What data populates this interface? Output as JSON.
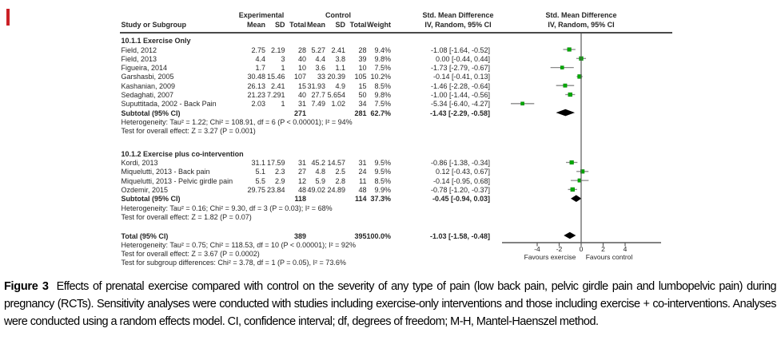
{
  "accent": {
    "red_mark_color": "#cb2026"
  },
  "table": {
    "headers": {
      "experimental": "Experimental",
      "control": "Control",
      "smd": "Std. Mean Difference",
      "method": "IV, Random, 95% CI",
      "study": "Study or Subgroup",
      "mean": "Mean",
      "sd": "SD",
      "total": "Total",
      "weight": "Weight"
    },
    "groups": [
      {
        "label": "10.1.1 Exercise Only",
        "studies": [
          {
            "name": "Field, 2012",
            "mean1": "2.75",
            "sd1": "2.19",
            "total1": "28",
            "mean2": "5.27",
            "sd2": "2.41",
            "total2": "28",
            "weight": "9.4%",
            "ci_text": "-1.08 [-1.64, -0.52]",
            "est": -1.08,
            "lo": -1.64,
            "hi": -0.52
          },
          {
            "name": "Field, 2013",
            "mean1": "4.4",
            "sd1": "3",
            "total1": "40",
            "mean2": "4.4",
            "sd2": "3.8",
            "total2": "39",
            "weight": "9.8%",
            "ci_text": "0.00 [-0.44, 0.44]",
            "est": 0.0,
            "lo": -0.44,
            "hi": 0.44
          },
          {
            "name": "Figueira, 2014",
            "mean1": "1.7",
            "sd1": "1",
            "total1": "10",
            "mean2": "3.6",
            "sd2": "1.1",
            "total2": "10",
            "weight": "7.5%",
            "ci_text": "-1.73 [-2.79, -0.67]",
            "est": -1.73,
            "lo": -2.79,
            "hi": -0.67
          },
          {
            "name": "Garshasbi, 2005",
            "mean1": "30.48",
            "sd1": "15.46",
            "total1": "107",
            "mean2": "33",
            "sd2": "20.39",
            "total2": "105",
            "weight": "10.2%",
            "ci_text": "-0.14 [-0.41, 0.13]",
            "est": -0.14,
            "lo": -0.41,
            "hi": 0.13
          },
          {
            "name": "Kashanian, 2009",
            "mean1": "26.13",
            "sd1": "2.41",
            "total1": "15",
            "mean2": "31.93",
            "sd2": "4.9",
            "total2": "15",
            "weight": "8.5%",
            "ci_text": "-1.46 [-2.28, -0.64]",
            "est": -1.46,
            "lo": -2.28,
            "hi": -0.64
          },
          {
            "name": "Sedaghati, 2007",
            "mean1": "21.23",
            "sd1": "7.291",
            "total1": "40",
            "mean2": "27.7",
            "sd2": "5.654",
            "total2": "50",
            "weight": "9.8%",
            "ci_text": "-1.00 [-1.44, -0.56]",
            "est": -1.0,
            "lo": -1.44,
            "hi": -0.56
          },
          {
            "name": "Suputtitada, 2002 - Back Pain",
            "mean1": "2.03",
            "sd1": "1",
            "total1": "31",
            "mean2": "7.49",
            "sd2": "1.02",
            "total2": "34",
            "weight": "7.5%",
            "ci_text": "-5.34 [-6.40, -4.27]",
            "est": -5.34,
            "lo": -6.4,
            "hi": -4.27
          }
        ],
        "subtotal": {
          "label": "Subtotal (95% CI)",
          "total1": "271",
          "total2": "281",
          "weight": "62.7%",
          "ci_text": "-1.43 [-2.29, -0.58]",
          "est": -1.43,
          "lo": -2.29,
          "hi": -0.58
        },
        "heterogeneity": "Heterogeneity: Tau² = 1.22; Chi² = 108.91, df = 6 (P < 0.00001); I² = 94%",
        "overall_test": "Test for overall effect: Z = 3.27 (P = 0.001)"
      },
      {
        "label": "10.1.2 Exercise plus co-intervention",
        "studies": [
          {
            "name": "Kordi, 2013",
            "mean1": "31.1",
            "sd1": "17.59",
            "total1": "31",
            "mean2": "45.2",
            "sd2": "14.57",
            "total2": "31",
            "weight": "9.5%",
            "ci_text": "-0.86 [-1.38, -0.34]",
            "est": -0.86,
            "lo": -1.38,
            "hi": -0.34
          },
          {
            "name": "Miquelutti, 2013 - Back pain",
            "mean1": "5.1",
            "sd1": "2.3",
            "total1": "27",
            "mean2": "4.8",
            "sd2": "2.5",
            "total2": "24",
            "weight": "9.5%",
            "ci_text": "0.12 [-0.43, 0.67]",
            "est": 0.12,
            "lo": -0.43,
            "hi": 0.67
          },
          {
            "name": "Miquelutti, 2013 - Pelvic girdle pain",
            "mean1": "5.5",
            "sd1": "2.9",
            "total1": "12",
            "mean2": "5.9",
            "sd2": "2.8",
            "total2": "11",
            "weight": "8.5%",
            "ci_text": "-0.14 [-0.95, 0.68]",
            "est": -0.14,
            "lo": -0.95,
            "hi": 0.68
          },
          {
            "name": "Ozdemir, 2015",
            "mean1": "29.75",
            "sd1": "23.84",
            "total1": "48",
            "mean2": "49.02",
            "sd2": "24.89",
            "total2": "48",
            "weight": "9.9%",
            "ci_text": "-0.78 [-1.20, -0.37]",
            "est": -0.78,
            "lo": -1.2,
            "hi": -0.37
          }
        ],
        "subtotal": {
          "label": "Subtotal (95% CI)",
          "total1": "118",
          "total2": "114",
          "weight": "37.3%",
          "ci_text": "-0.45 [-0.94, 0.03]",
          "est": -0.45,
          "lo": -0.94,
          "hi": 0.03
        },
        "heterogeneity": "Heterogeneity: Tau² = 0.16; Chi² = 9.30, df = 3 (P = 0.03); I² = 68%",
        "overall_test": "Test for overall effect: Z = 1.82 (P = 0.07)"
      }
    ],
    "total": {
      "label": "Total (95% CI)",
      "total1": "389",
      "total2": "395",
      "weight": "100.0%",
      "ci_text": "-1.03 [-1.58, -0.48]",
      "est": -1.03,
      "lo": -1.58,
      "hi": -0.48
    },
    "total_heterogeneity": "Heterogeneity: Tau² = 0.75; Chi² = 118.53, df = 10 (P < 0.00001); I² = 92%",
    "total_overall_test": "Test for overall effect: Z = 3.67 (P = 0.0002)",
    "subgroup_test": "Test for subgroup differences: Chi² = 3.78, df = 1 (P = 0.05), I² = 73.6%"
  },
  "axis": {
    "ticks": [
      "-4",
      "-2",
      "0",
      "2",
      "4"
    ],
    "tick_values": [
      -4,
      -2,
      0,
      2,
      4
    ],
    "left_label": "Favours exercise",
    "right_label": "Favours control"
  },
  "caption": {
    "label": "Figure 3",
    "text": "Effects of prenatal exercise compared with control on the severity of any type of pain (low back pain, pelvic girdle pain and lumbopelvic pain) during pregnancy (RCTs). Sensitivity analyses were conducted with studies including exercise-only interventions and those including exercise + co-interventions. Analyses were conducted using a random effects model. CI, confidence interval; df, degrees of freedom; M-H, Mantel-Haenszel method."
  },
  "colors": {
    "marker_green": "#00ab00",
    "marker_green_edge": "#007c00",
    "ci_line_gray": "#8a8a8a",
    "axis_gray": "#595959",
    "diamond_black": "#000000"
  },
  "chart_data": {
    "type": "scatter",
    "variant": "forest-plot",
    "title": "Std. Mean Difference  IV, Random, 95% CI",
    "xlim": [
      -7.2,
      7.2
    ],
    "x_ticks": [
      -4,
      -2,
      0,
      2,
      4
    ],
    "x_direction_labels": [
      "Favours exercise",
      "Favours control"
    ],
    "series": [
      {
        "name": "10.1.1 Exercise Only",
        "points": [
          {
            "study": "Field, 2012",
            "smd": -1.08,
            "ci": [
              -1.64,
              -0.52
            ],
            "weight_pct": 9.4
          },
          {
            "study": "Field, 2013",
            "smd": 0.0,
            "ci": [
              -0.44,
              0.44
            ],
            "weight_pct": 9.8
          },
          {
            "study": "Figueira, 2014",
            "smd": -1.73,
            "ci": [
              -2.79,
              -0.67
            ],
            "weight_pct": 7.5
          },
          {
            "study": "Garshasbi, 2005",
            "smd": -0.14,
            "ci": [
              -0.41,
              0.13
            ],
            "weight_pct": 10.2
          },
          {
            "study": "Kashanian, 2009",
            "smd": -1.46,
            "ci": [
              -2.28,
              -0.64
            ],
            "weight_pct": 8.5
          },
          {
            "study": "Sedaghati, 2007",
            "smd": -1.0,
            "ci": [
              -1.44,
              -0.56
            ],
            "weight_pct": 9.8
          },
          {
            "study": "Suputtitada, 2002 - Back Pain",
            "smd": -5.34,
            "ci": [
              -6.4,
              -4.27
            ],
            "weight_pct": 7.5
          }
        ],
        "subtotal": {
          "smd": -1.43,
          "ci": [
            -2.29,
            -0.58
          ],
          "weight_pct": 62.7
        }
      },
      {
        "name": "10.1.2 Exercise plus co-intervention",
        "points": [
          {
            "study": "Kordi, 2013",
            "smd": -0.86,
            "ci": [
              -1.38,
              -0.34
            ],
            "weight_pct": 9.5
          },
          {
            "study": "Miquelutti, 2013 - Back pain",
            "smd": 0.12,
            "ci": [
              -0.43,
              0.67
            ],
            "weight_pct": 9.5
          },
          {
            "study": "Miquelutti, 2013 - Pelvic girdle pain",
            "smd": -0.14,
            "ci": [
              -0.95,
              0.68
            ],
            "weight_pct": 8.5
          },
          {
            "study": "Ozdemir, 2015",
            "smd": -0.78,
            "ci": [
              -1.2,
              -0.37
            ],
            "weight_pct": 9.9
          }
        ],
        "subtotal": {
          "smd": -0.45,
          "ci": [
            -0.94,
            0.03
          ],
          "weight_pct": 37.3
        }
      }
    ],
    "total": {
      "smd": -1.03,
      "ci": [
        -1.58,
        -0.48
      ],
      "weight_pct": 100.0
    }
  }
}
